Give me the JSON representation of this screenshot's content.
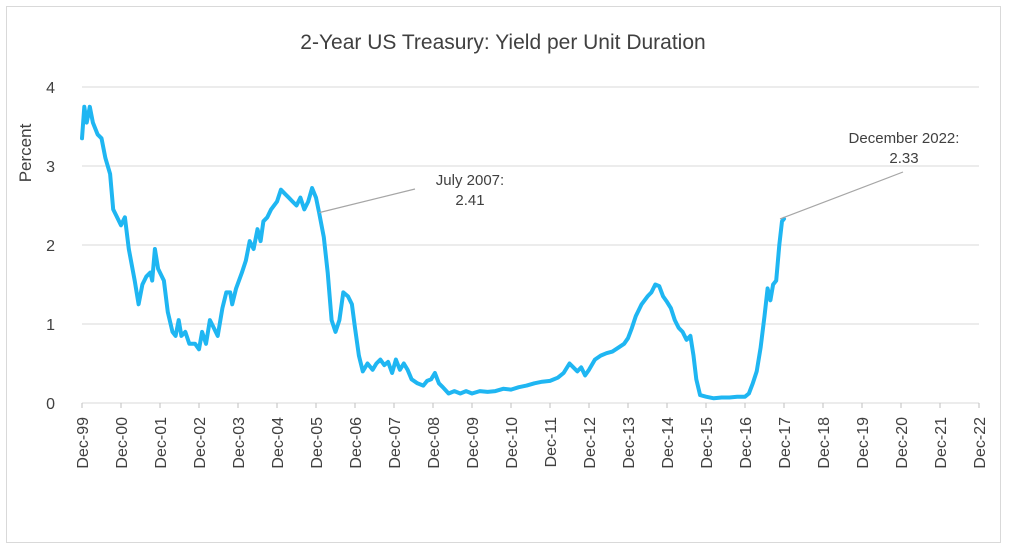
{
  "chart_data": {
    "type": "line",
    "title": "2-Year US Treasury: Yield per Unit Duration",
    "xlabel": "",
    "ylabel": "Percent",
    "ylim": [
      0,
      4
    ],
    "grid": true,
    "y_ticks": [
      "0",
      "1",
      "2",
      "3",
      "4"
    ],
    "categories": [
      "Dec-99",
      "Dec-00",
      "Dec-01",
      "Dec-02",
      "Dec-03",
      "Dec-04",
      "Dec-05",
      "Dec-06",
      "Dec-07",
      "Dec-08",
      "Dec-09",
      "Dec-10",
      "Dec-11",
      "Dec-12",
      "Dec-13",
      "Dec-14",
      "Dec-15",
      "Dec-16",
      "Dec-17",
      "Dec-18",
      "Dec-19",
      "Dec-20",
      "Dec-21",
      "Dec-22"
    ],
    "series": [
      {
        "name": "2-Year US Treasury Yield per Unit Duration",
        "color": "#1fb6f2",
        "points": [
          [
            0.0,
            3.35
          ],
          [
            0.06,
            3.75
          ],
          [
            0.12,
            3.55
          ],
          [
            0.2,
            3.75
          ],
          [
            0.28,
            3.55
          ],
          [
            0.4,
            3.4
          ],
          [
            0.5,
            3.35
          ],
          [
            0.6,
            3.1
          ],
          [
            0.72,
            2.9
          ],
          [
            0.8,
            2.45
          ],
          [
            0.9,
            2.35
          ],
          [
            1.0,
            2.25
          ],
          [
            1.1,
            2.35
          ],
          [
            1.2,
            1.95
          ],
          [
            1.35,
            1.55
          ],
          [
            1.45,
            1.25
          ],
          [
            1.55,
            1.5
          ],
          [
            1.65,
            1.6
          ],
          [
            1.75,
            1.65
          ],
          [
            1.8,
            1.55
          ],
          [
            1.87,
            1.95
          ],
          [
            1.95,
            1.7
          ],
          [
            2.1,
            1.55
          ],
          [
            2.2,
            1.15
          ],
          [
            2.32,
            0.9
          ],
          [
            2.4,
            0.85
          ],
          [
            2.48,
            1.05
          ],
          [
            2.55,
            0.85
          ],
          [
            2.65,
            0.9
          ],
          [
            2.75,
            0.75
          ],
          [
            2.9,
            0.75
          ],
          [
            3.0,
            0.68
          ],
          [
            3.08,
            0.9
          ],
          [
            3.18,
            0.75
          ],
          [
            3.28,
            1.05
          ],
          [
            3.38,
            0.95
          ],
          [
            3.48,
            0.85
          ],
          [
            3.6,
            1.2
          ],
          [
            3.7,
            1.4
          ],
          [
            3.8,
            1.4
          ],
          [
            3.85,
            1.25
          ],
          [
            3.95,
            1.45
          ],
          [
            4.1,
            1.65
          ],
          [
            4.2,
            1.8
          ],
          [
            4.3,
            2.05
          ],
          [
            4.4,
            1.95
          ],
          [
            4.5,
            2.2
          ],
          [
            4.58,
            2.05
          ],
          [
            4.65,
            2.3
          ],
          [
            4.75,
            2.35
          ],
          [
            4.85,
            2.45
          ],
          [
            5.0,
            2.55
          ],
          [
            5.1,
            2.7
          ],
          [
            5.2,
            2.65
          ],
          [
            5.3,
            2.6
          ],
          [
            5.4,
            2.55
          ],
          [
            5.5,
            2.5
          ],
          [
            5.6,
            2.6
          ],
          [
            5.7,
            2.45
          ],
          [
            5.8,
            2.55
          ],
          [
            5.9,
            2.72
          ],
          [
            6.0,
            2.6
          ],
          [
            6.08,
            2.41
          ],
          [
            6.2,
            2.1
          ],
          [
            6.3,
            1.65
          ],
          [
            6.4,
            1.05
          ],
          [
            6.5,
            0.9
          ],
          [
            6.6,
            1.05
          ],
          [
            6.7,
            1.4
          ],
          [
            6.82,
            1.35
          ],
          [
            6.92,
            1.25
          ],
          [
            7.0,
            0.95
          ],
          [
            7.1,
            0.6
          ],
          [
            7.2,
            0.4
          ],
          [
            7.32,
            0.5
          ],
          [
            7.45,
            0.42
          ],
          [
            7.55,
            0.5
          ],
          [
            7.65,
            0.55
          ],
          [
            7.75,
            0.48
          ],
          [
            7.85,
            0.52
          ],
          [
            7.95,
            0.38
          ],
          [
            8.05,
            0.55
          ],
          [
            8.15,
            0.42
          ],
          [
            8.25,
            0.5
          ],
          [
            8.35,
            0.42
          ],
          [
            8.45,
            0.3
          ],
          [
            8.6,
            0.25
          ],
          [
            8.75,
            0.22
          ],
          [
            8.85,
            0.28
          ],
          [
            8.95,
            0.3
          ],
          [
            9.05,
            0.38
          ],
          [
            9.15,
            0.25
          ],
          [
            9.25,
            0.2
          ],
          [
            9.4,
            0.12
          ],
          [
            9.55,
            0.15
          ],
          [
            9.7,
            0.12
          ],
          [
            9.85,
            0.15
          ],
          [
            10.0,
            0.12
          ],
          [
            10.2,
            0.15
          ],
          [
            10.4,
            0.14
          ],
          [
            10.6,
            0.15
          ],
          [
            10.8,
            0.18
          ],
          [
            11.0,
            0.17
          ],
          [
            11.2,
            0.2
          ],
          [
            11.4,
            0.22
          ],
          [
            11.6,
            0.25
          ],
          [
            11.8,
            0.27
          ],
          [
            12.0,
            0.28
          ],
          [
            12.2,
            0.32
          ],
          [
            12.35,
            0.38
          ],
          [
            12.5,
            0.5
          ],
          [
            12.6,
            0.45
          ],
          [
            12.7,
            0.4
          ],
          [
            12.8,
            0.45
          ],
          [
            12.9,
            0.35
          ],
          [
            13.0,
            0.42
          ],
          [
            13.15,
            0.55
          ],
          [
            13.3,
            0.6
          ],
          [
            13.45,
            0.63
          ],
          [
            13.6,
            0.65
          ],
          [
            13.75,
            0.7
          ],
          [
            13.9,
            0.75
          ],
          [
            14.0,
            0.82
          ],
          [
            14.1,
            0.95
          ],
          [
            14.2,
            1.1
          ],
          [
            14.35,
            1.25
          ],
          [
            14.5,
            1.35
          ],
          [
            14.6,
            1.4
          ],
          [
            14.7,
            1.5
          ],
          [
            14.8,
            1.48
          ],
          [
            14.9,
            1.35
          ],
          [
            15.0,
            1.28
          ],
          [
            15.1,
            1.2
          ],
          [
            15.2,
            1.05
          ],
          [
            15.3,
            0.95
          ],
          [
            15.4,
            0.9
          ],
          [
            15.5,
            0.8
          ],
          [
            15.6,
            0.85
          ],
          [
            15.68,
            0.6
          ],
          [
            15.75,
            0.3
          ],
          [
            15.85,
            0.1
          ],
          [
            16.0,
            0.08
          ],
          [
            16.2,
            0.06
          ],
          [
            16.4,
            0.07
          ],
          [
            16.6,
            0.07
          ],
          [
            16.8,
            0.08
          ],
          [
            17.0,
            0.08
          ],
          [
            17.1,
            0.12
          ],
          [
            17.2,
            0.25
          ],
          [
            17.3,
            0.4
          ],
          [
            17.4,
            0.7
          ],
          [
            17.5,
            1.1
          ],
          [
            17.58,
            1.45
          ],
          [
            17.65,
            1.3
          ],
          [
            17.72,
            1.5
          ],
          [
            17.8,
            1.55
          ],
          [
            17.88,
            2.0
          ],
          [
            17.95,
            2.3
          ],
          [
            18.0,
            2.33
          ]
        ]
      }
    ],
    "annotations": [
      {
        "line1": "July 2007:",
        "line2": "2.41",
        "x": 6.08,
        "y": 2.41
      },
      {
        "line1": "December 2022:",
        "line2": "2.33",
        "x": 18.0,
        "y": 2.33
      }
    ]
  }
}
